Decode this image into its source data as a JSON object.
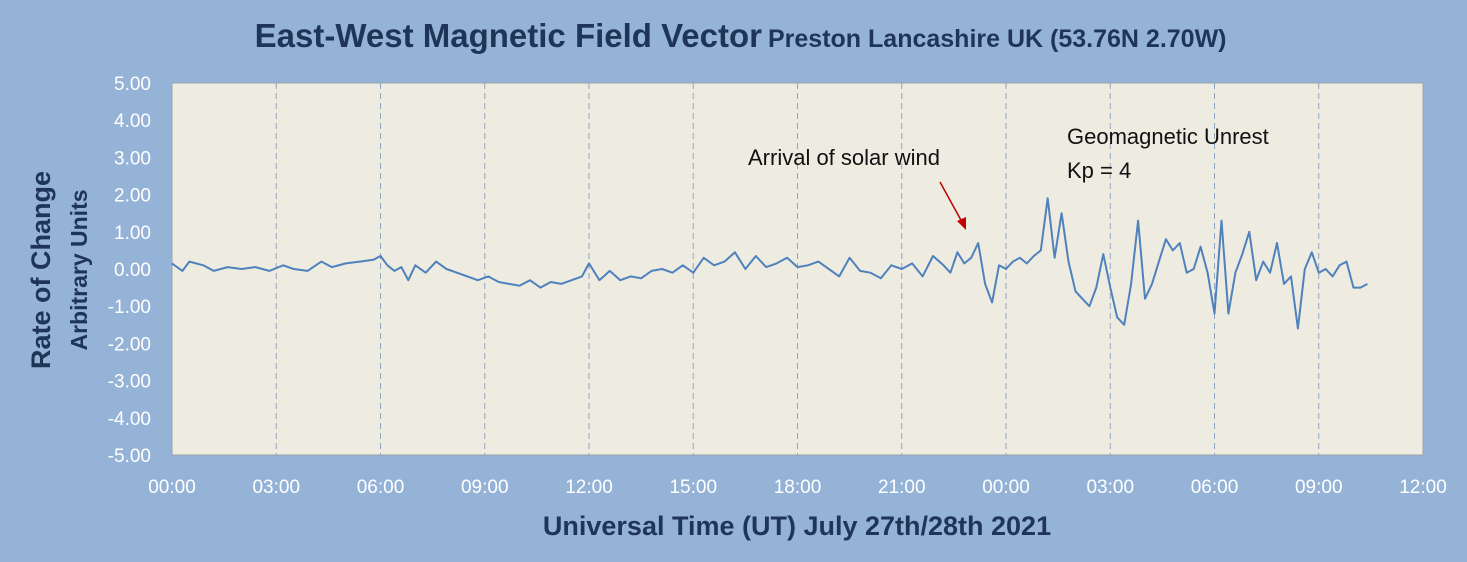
{
  "chart_data": {
    "type": "line",
    "title": "East-West Magnetic Field Vector",
    "subtitle": "Preston Lancashire UK (53.76N 2.70W)",
    "xlabel": "Universal Time (UT) July 27th/28th 2021",
    "ylabel_lines": [
      "Rate of Change",
      "Arbitrary Units"
    ],
    "x_unit": "hours from 00:00 UT July 27th 2021",
    "xlim": [
      0,
      36
    ],
    "ylim": [
      -5,
      5
    ],
    "x_tick_labels": [
      "00:00",
      "03:00",
      "06:00",
      "09:00",
      "12:00",
      "15:00",
      "18:00",
      "21:00",
      "00:00",
      "03:00",
      "06:00",
      "09:00",
      "12:00"
    ],
    "y_tick_labels": [
      "5.00",
      "4.00",
      "3.00",
      "2.00",
      "1.00",
      "0.00",
      "-1.00",
      "-2.00",
      "-3.00",
      "-4.00",
      "-5.00"
    ],
    "grid": "vertical dashed at each 3-hour tick",
    "colors": {
      "background": "#95b3d7",
      "plot_area": "#eeece1",
      "line": "#4f81bd",
      "arrow": "#c00000",
      "title": "#1f3557",
      "tick_text": "#ffffff"
    },
    "series": [
      {
        "x": [
          0,
          0.3,
          0.5,
          0.9,
          1.2,
          1.6,
          2.0,
          2.4,
          2.8,
          3.2,
          3.5,
          3.9,
          4.3,
          4.6,
          5.0,
          5.4,
          5.8,
          6.0,
          6.2,
          6.4,
          6.6,
          6.8,
          7.0,
          7.3,
          7.6,
          7.9,
          8.2,
          8.5,
          8.8,
          9.1,
          9.4,
          9.7,
          10.0,
          10.3,
          10.6,
          10.9,
          11.2,
          11.5,
          11.8,
          12.0,
          12.3,
          12.6,
          12.9,
          13.2,
          13.5,
          13.8,
          14.1,
          14.4,
          14.7,
          15.0,
          15.3,
          15.6,
          15.9,
          16.2,
          16.5,
          16.8,
          17.1,
          17.4,
          17.7,
          18.0,
          18.3,
          18.6,
          18.9,
          19.2,
          19.5,
          19.8,
          20.1,
          20.4,
          20.7,
          21.0,
          21.3,
          21.6,
          21.9,
          22.2,
          22.4,
          22.6,
          22.8,
          23.0,
          23.2,
          23.4,
          23.6,
          23.8,
          24.0,
          24.2,
          24.4,
          24.6,
          24.8,
          25.0,
          25.2,
          25.4,
          25.6,
          25.8,
          26.0,
          26.2,
          26.4,
          26.6,
          26.8,
          27.0,
          27.2,
          27.4,
          27.6,
          27.8,
          28.0,
          28.2,
          28.4,
          28.6,
          28.8,
          29.0,
          29.2,
          29.4,
          29.6,
          29.8,
          30.0,
          30.2,
          30.4,
          30.6,
          30.8,
          31.0,
          31.2,
          31.4,
          31.6,
          31.8,
          32.0,
          32.2,
          32.4,
          32.6,
          32.8,
          33.0,
          33.2,
          33.4,
          33.6,
          33.8,
          34.0,
          34.2,
          34.4
        ],
        "values": [
          0.15,
          -0.05,
          0.2,
          0.1,
          -0.05,
          0.05,
          0.0,
          0.05,
          -0.05,
          0.1,
          0.0,
          -0.05,
          0.2,
          0.05,
          0.15,
          0.2,
          0.25,
          0.35,
          0.1,
          -0.05,
          0.05,
          -0.3,
          0.1,
          -0.1,
          0.2,
          0.0,
          -0.1,
          -0.2,
          -0.3,
          -0.2,
          -0.35,
          -0.4,
          -0.45,
          -0.3,
          -0.5,
          -0.35,
          -0.4,
          -0.3,
          -0.2,
          0.15,
          -0.3,
          -0.05,
          -0.3,
          -0.2,
          -0.25,
          -0.05,
          0.0,
          -0.1,
          0.1,
          -0.1,
          0.3,
          0.1,
          0.2,
          0.45,
          0.0,
          0.35,
          0.05,
          0.15,
          0.3,
          0.05,
          0.1,
          0.2,
          0.0,
          -0.2,
          0.3,
          -0.05,
          -0.1,
          -0.25,
          0.1,
          0.0,
          0.15,
          -0.2,
          0.35,
          0.1,
          -0.1,
          0.45,
          0.15,
          0.3,
          0.7,
          -0.4,
          -0.9,
          0.1,
          0.0,
          0.2,
          0.3,
          0.15,
          0.35,
          0.5,
          1.9,
          0.3,
          1.5,
          0.2,
          -0.6,
          -0.8,
          -1.0,
          -0.5,
          0.4,
          -0.5,
          -1.3,
          -1.5,
          -0.4,
          1.3,
          -0.8,
          -0.4,
          0.2,
          0.8,
          0.5,
          0.7,
          -0.1,
          0.0,
          0.6,
          -0.1,
          -1.2,
          1.3,
          -1.2,
          -0.1,
          0.4,
          1.0,
          -0.3,
          0.2,
          -0.1,
          0.7,
          -0.4,
          -0.2,
          -1.6,
          0.0,
          0.45,
          -0.1,
          0.0,
          -0.2,
          0.1,
          0.2,
          -0.5,
          -0.5,
          -0.4
        ]
      }
    ],
    "annotations": [
      {
        "text": "Arrival of solar wind",
        "arrow_to_x": 22.6,
        "arrow_to_y": 1.0
      },
      {
        "text_lines": [
          "Geomagnetic Unrest",
          "Kp = 4"
        ]
      }
    ]
  }
}
